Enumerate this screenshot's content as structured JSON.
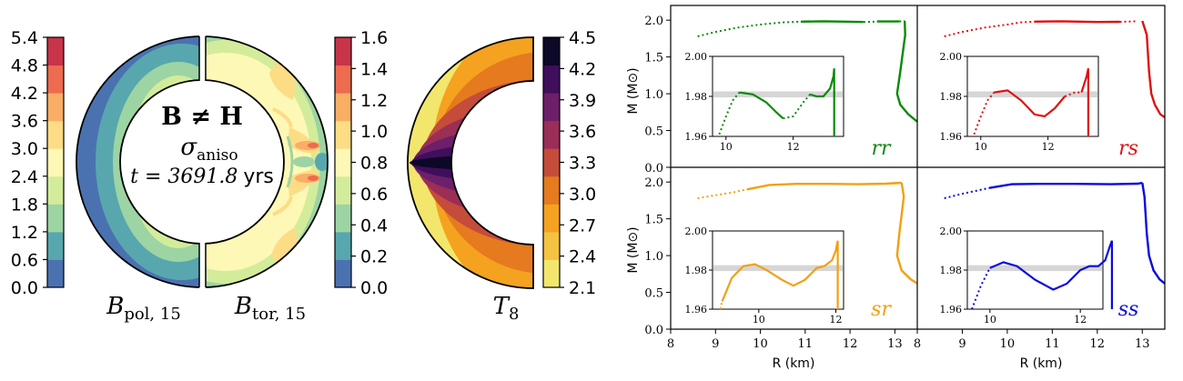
{
  "left_figure": {
    "annotation": {
      "line1": "B ≠ H",
      "line2_base": "σ",
      "line2_sub": "aniso",
      "line3": "t = 3691.8",
      "line3_unit": "yrs"
    },
    "label_pol": {
      "base": "B",
      "sub": "pol, 15"
    },
    "label_tor": {
      "base": "B",
      "sub": "tor, 15"
    },
    "label_temp": {
      "base": "T",
      "sub": "8"
    }
  },
  "chart_data": [
    {
      "type": "heatmap",
      "name": "B_pol,15",
      "colorbar_ticks": [
        "0.0",
        "0.6",
        "1.2",
        "1.8",
        "2.4",
        "3.0",
        "3.6",
        "4.2",
        "4.8",
        "5.4"
      ],
      "range": [
        0.0,
        5.4
      ],
      "colormap": "Spectral_r",
      "colors": [
        "#4a72b0",
        "#58a7ae",
        "#9dd4a3",
        "#d3ec9b",
        "#fdf8b5",
        "#fddc86",
        "#f9ad65",
        "#ed6b4e",
        "#c8344a"
      ]
    },
    {
      "type": "heatmap",
      "name": "B_tor,15",
      "colorbar_ticks": [
        "0.0",
        "0.2",
        "0.4",
        "0.6",
        "0.8",
        "1.0",
        "1.2",
        "1.4",
        "1.6"
      ],
      "range": [
        0.0,
        1.6
      ],
      "colormap": "Spectral_r",
      "colors": [
        "#4a72b0",
        "#58a7ae",
        "#9dd4a3",
        "#d3ec9b",
        "#fdf8b5",
        "#fddc86",
        "#f9ad65",
        "#ed6b4e",
        "#c8344a"
      ]
    },
    {
      "type": "heatmap",
      "name": "T_8",
      "colorbar_ticks": [
        "2.1",
        "2.4",
        "2.7",
        "3.0",
        "3.3",
        "3.6",
        "3.9",
        "4.2",
        "4.5"
      ],
      "range": [
        2.1,
        4.5
      ],
      "colormap": "inferno_r",
      "colors": [
        "#f2e66c",
        "#f5c242",
        "#f4a220",
        "#e57a1f",
        "#c54c3a",
        "#9b2e57",
        "#6d1f6a",
        "#3f0f5c",
        "#0c0828"
      ]
    },
    {
      "type": "line",
      "panel": "rr",
      "label": "rr",
      "color": "#0a8a0a",
      "xlim": [
        8,
        13.5
      ],
      "ylim": [
        0,
        2.2
      ],
      "x_ticks": [
        "8",
        "9",
        "10",
        "11",
        "12",
        "13"
      ],
      "y_ticks": [
        "0.0",
        "0.5",
        "1.0",
        "1.5",
        "2.0"
      ],
      "ylabel": "M (M⊙)",
      "inset": {
        "xlim": [
          9.6,
          13.5
        ],
        "ylim": [
          1.96,
          2.0
        ],
        "x_ticks": [
          "10",
          "12"
        ],
        "y_ticks": [
          "1.96",
          "1.98",
          "2.00"
        ]
      }
    },
    {
      "type": "line",
      "panel": "rs",
      "label": "rs",
      "color": "#e01010",
      "xlim": [
        8,
        13.5
      ],
      "ylim": [
        0,
        2.2
      ],
      "inset": {
        "xlim": [
          9.6,
          13.5
        ],
        "ylim": [
          1.96,
          2.0
        ],
        "x_ticks": [
          "10",
          "12"
        ],
        "y_ticks": [
          "1.96",
          "1.98",
          "2.00"
        ]
      }
    },
    {
      "type": "line",
      "panel": "sr",
      "label": "sr",
      "color": "#f2a010",
      "xlim": [
        8,
        13.5
      ],
      "ylim": [
        0,
        2.2
      ],
      "x_ticks": [
        "8",
        "9",
        "10",
        "11",
        "12",
        "13"
      ],
      "y_ticks": [
        "0.0",
        "0.5",
        "1.0",
        "1.5",
        "2.0"
      ],
      "xlabel": "R (km)",
      "ylabel": "M (M⊙)",
      "inset": {
        "xlim": [
          8.8,
          12.2
        ],
        "ylim": [
          1.96,
          2.0
        ],
        "x_ticks": [
          "10",
          "12"
        ],
        "y_ticks": [
          "1.96",
          "1.98",
          "2.00"
        ]
      }
    },
    {
      "type": "line",
      "panel": "ss",
      "label": "ss",
      "color": "#0a0ae0",
      "xlim": [
        8,
        13.5
      ],
      "ylim": [
        0,
        2.2
      ],
      "x_ticks": [
        "8",
        "9",
        "10",
        "11",
        "12",
        "13"
      ],
      "xlabel": "R (km)",
      "inset": {
        "xlim": [
          9.5,
          12.5
        ],
        "ylim": [
          1.96,
          2.0
        ],
        "x_ticks": [
          "10",
          "12"
        ],
        "y_ticks": [
          "1.96",
          "1.98",
          "2.00"
        ]
      }
    }
  ]
}
